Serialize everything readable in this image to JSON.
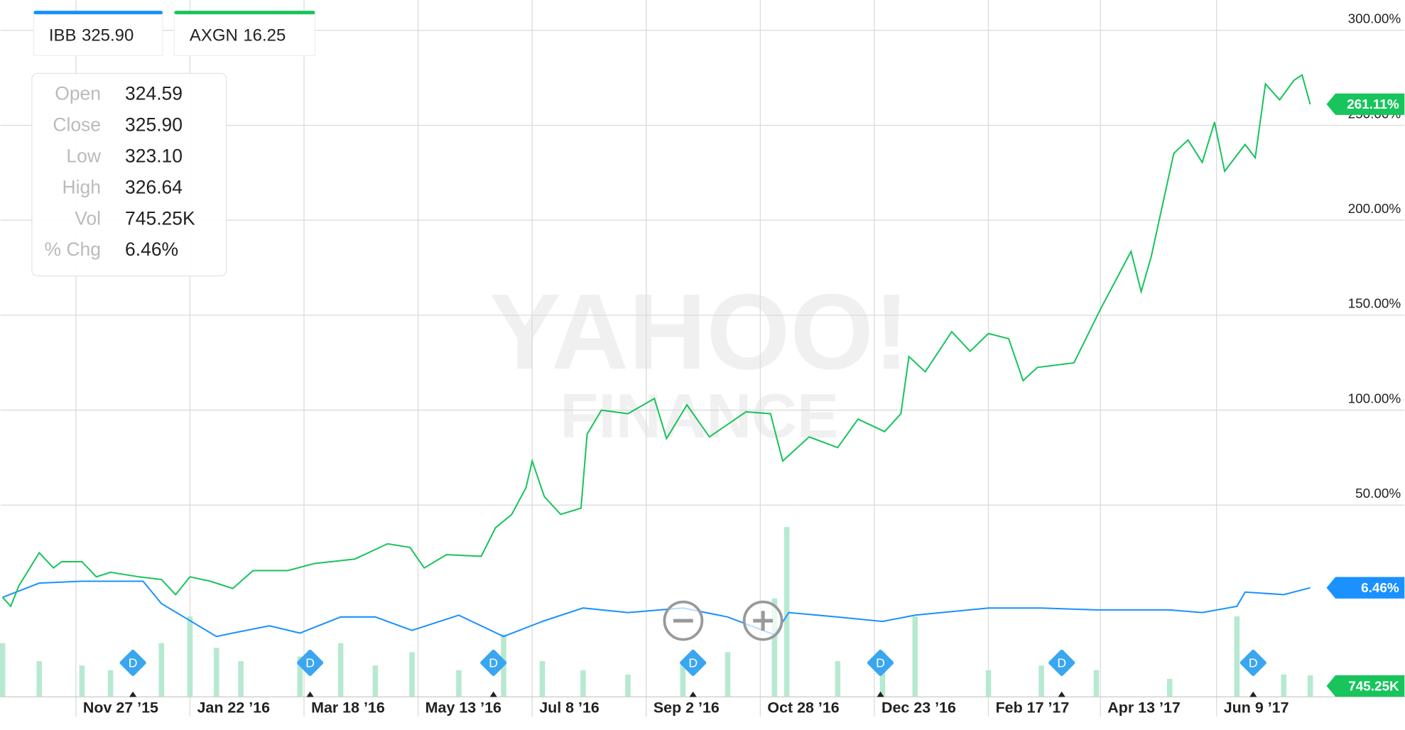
{
  "chart_data": {
    "type": "line",
    "watermark": [
      "YAHOO!",
      "FINANCE"
    ],
    "xlim": [
      "2015-10-21",
      "2017-08-02"
    ],
    "xticks": [
      {
        "value": "2015-11-27",
        "label": "Nov 27 ’15"
      },
      {
        "value": "2016-01-22",
        "label": "Jan 22 ’16"
      },
      {
        "value": "2016-03-18",
        "label": "Mar 18 ’16"
      },
      {
        "value": "2016-05-13",
        "label": "May 13 ’16"
      },
      {
        "value": "2016-07-08",
        "label": "Jul 8 ’16"
      },
      {
        "value": "2016-09-02",
        "label": "Sep 2 ’16"
      },
      {
        "value": "2016-10-28",
        "label": "Oct 28 ’16"
      },
      {
        "value": "2016-12-23",
        "label": "Dec 23 ’16"
      },
      {
        "value": "2017-02-17",
        "label": "Feb 17 ’17"
      },
      {
        "value": "2017-04-13",
        "label": "Apr 13 ’17"
      },
      {
        "value": "2017-06-09",
        "label": "Jun 9 ’17"
      }
    ],
    "ylim": [
      -51,
      316
    ],
    "yticks": [
      {
        "value": 50,
        "label": "50.00%"
      },
      {
        "value": 100,
        "label": "100.00%"
      },
      {
        "value": 150,
        "label": "150.00%"
      },
      {
        "value": 200,
        "label": "200.00%"
      },
      {
        "value": 250,
        "label": "250.00%"
      },
      {
        "value": 300,
        "label": "300.00%"
      }
    ],
    "grid": true,
    "series": [
      {
        "name": "IBB",
        "price": "325.90",
        "color": "#1a91ff",
        "last_label": "6.46%",
        "x": [
          "2015-10-22",
          "2015-11-09",
          "2015-11-30",
          "2015-12-30",
          "2016-01-08",
          "2016-01-19",
          "2016-02-04",
          "2016-02-12",
          "2016-03-01",
          "2016-03-16",
          "2016-04-05",
          "2016-04-22",
          "2016-05-10",
          "2016-06-02",
          "2016-06-24",
          "2016-07-13",
          "2016-08-02",
          "2016-08-24",
          "2016-09-20",
          "2016-10-12",
          "2016-11-04",
          "2016-11-11",
          "2016-12-05",
          "2016-12-27",
          "2017-01-12",
          "2017-02-17",
          "2017-03-15",
          "2017-04-11",
          "2017-05-17",
          "2017-06-02",
          "2017-06-19",
          "2017-06-23",
          "2017-07-12",
          "2017-07-25"
        ],
        "values": [
          1.4,
          8.9,
          9.9,
          9.9,
          -1.9,
          -8.9,
          -19.2,
          -17.4,
          -13.6,
          -17.4,
          -8.9,
          -8.9,
          -16.0,
          -8.0,
          -19.2,
          -11.3,
          -4.2,
          -6.6,
          -4.2,
          -8.9,
          -18.3,
          -6.6,
          -8.9,
          -11.3,
          -8.0,
          -4.2,
          -4.2,
          -5.2,
          -5.2,
          -6.6,
          -3.3,
          4.2,
          2.8,
          6.46
        ]
      },
      {
        "name": "AXGN",
        "price": "16.25",
        "color": "#18c45c",
        "last_label": "261.11%",
        "x": [
          "2015-10-22",
          "2015-10-26",
          "2015-10-30",
          "2015-11-09",
          "2015-11-16",
          "2015-11-20",
          "2015-11-30",
          "2015-12-07",
          "2015-12-14",
          "2015-12-28",
          "2016-01-08",
          "2016-01-15",
          "2016-01-22",
          "2016-02-01",
          "2016-02-12",
          "2016-02-22",
          "2016-03-10",
          "2016-03-23",
          "2016-04-12",
          "2016-04-28",
          "2016-05-09",
          "2016-05-16",
          "2016-05-27",
          "2016-06-13",
          "2016-06-20",
          "2016-06-28",
          "2016-07-05",
          "2016-07-08",
          "2016-07-14",
          "2016-07-22",
          "2016-08-01",
          "2016-08-04",
          "2016-08-11",
          "2016-08-24",
          "2016-09-06",
          "2016-09-12",
          "2016-09-22",
          "2016-10-03",
          "2016-10-21",
          "2016-11-02",
          "2016-11-08",
          "2016-11-21",
          "2016-12-05",
          "2016-12-15",
          "2016-12-28",
          "2017-01-05",
          "2017-01-09",
          "2017-01-17",
          "2017-01-30",
          "2017-02-08",
          "2017-02-17",
          "2017-02-27",
          "2017-03-06",
          "2017-03-13",
          "2017-03-31",
          "2017-04-13",
          "2017-04-28",
          "2017-05-03",
          "2017-05-08",
          "2017-05-19",
          "2017-05-26",
          "2017-06-02",
          "2017-06-08",
          "2017-06-13",
          "2017-06-23",
          "2017-06-28",
          "2017-07-03",
          "2017-07-10",
          "2017-07-17",
          "2017-07-21",
          "2017-07-25"
        ],
        "values": [
          1.4,
          -3.3,
          7.5,
          24.9,
          16.9,
          20.2,
          20.2,
          12.2,
          14.6,
          12.2,
          10.8,
          2.8,
          12.2,
          9.9,
          6.1,
          15.5,
          15.5,
          19.2,
          21.6,
          29.6,
          27.7,
          16.9,
          23.9,
          23.0,
          38.0,
          45.1,
          59.2,
          73.2,
          54.5,
          45.1,
          48.4,
          87.3,
          100,
          98.1,
          106.1,
          85.0,
          102.8,
          85.9,
          99.1,
          98.1,
          73.2,
          85.9,
          80.3,
          95.3,
          88.7,
          98.1,
          128.2,
          120.2,
          141.3,
          131.0,
          140.4,
          137.6,
          115.5,
          122.5,
          124.9,
          153.1,
          183.6,
          162.4,
          181.2,
          235.2,
          242.3,
          230.5,
          251.7,
          225.8,
          239.9,
          232.9,
          271.8,
          263.4,
          273.7,
          276.5,
          261.11
        ]
      }
    ],
    "volume": {
      "color": "#b7e9d1",
      "ylim": [
        0,
        24000
      ],
      "last_label": "745.25K",
      "x": [
        "2015-10-22",
        "2015-11-09",
        "2015-11-30",
        "2015-12-14",
        "2016-01-08",
        "2016-01-22",
        "2016-02-04",
        "2016-02-16",
        "2016-03-16",
        "2016-04-05",
        "2016-04-22",
        "2016-05-10",
        "2016-06-02",
        "2016-06-24",
        "2016-07-13",
        "2016-08-02",
        "2016-08-24",
        "2016-09-20",
        "2016-10-12",
        "2016-11-04",
        "2016-11-10",
        "2016-12-05",
        "2016-12-27",
        "2017-01-12",
        "2017-02-17",
        "2017-03-15",
        "2017-04-11",
        "2017-05-17",
        "2017-06-19",
        "2017-07-12",
        "2017-07-25"
      ],
      "values": [
        1850,
        1230,
        1080,
        920,
        1850,
        2770,
        1690,
        1230,
        1390,
        1850,
        1080,
        1540,
        920,
        2160,
        1230,
        920,
        770,
        1230,
        1540,
        3390,
        5850,
        1230,
        1540,
        2770,
        920,
        1080,
        920,
        620,
        2770,
        770,
        745.25
      ]
    },
    "dividends": [
      {
        "x": "2015-12-25",
        "label": "D"
      },
      {
        "x": "2016-03-21",
        "label": "D"
      },
      {
        "x": "2016-06-19",
        "label": "D"
      },
      {
        "x": "2016-09-25",
        "label": "D"
      },
      {
        "x": "2016-12-26",
        "label": "D"
      },
      {
        "x": "2017-03-25",
        "label": "D"
      },
      {
        "x": "2017-06-27",
        "label": "D"
      }
    ],
    "tooltip": [
      {
        "label": "Open",
        "value": "324.59"
      },
      {
        "label": "Close",
        "value": "325.90"
      },
      {
        "label": "Low",
        "value": "323.10"
      },
      {
        "label": "High",
        "value": "326.64"
      },
      {
        "label": "Vol",
        "value": "745.25K"
      },
      {
        "label": "% Chg",
        "value": "6.46%"
      }
    ]
  }
}
